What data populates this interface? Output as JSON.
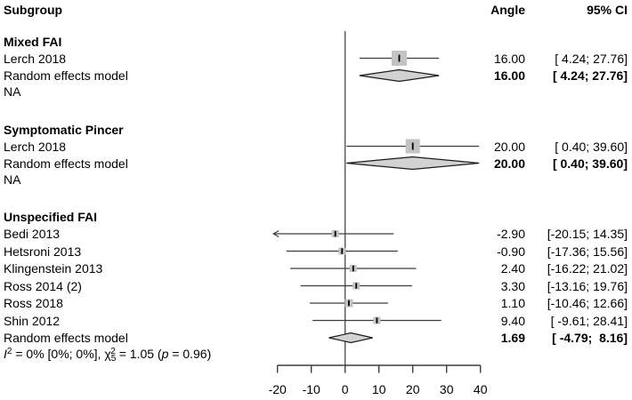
{
  "header": {
    "subgroup": "Subgroup",
    "angle": "Angle",
    "ci": "95% CI"
  },
  "chart_data": {
    "type": "forest",
    "xlim": [
      -20,
      40
    ],
    "ticks": [
      "-20",
      "-10",
      "0",
      "10",
      "20",
      "30",
      "40"
    ],
    "tick_values": [
      -20,
      -10,
      0,
      10,
      20,
      30,
      40
    ],
    "zero_line": 0,
    "grid": false,
    "groups": [
      {
        "heading": "Mixed FAI",
        "studies": [
          {
            "label": "Lerch 2018",
            "estimate": 16.0,
            "lower": 4.24,
            "upper": 27.76,
            "angle_text": "16.00",
            "ci_text": "[ 4.24; 27.76]"
          }
        ],
        "summary": {
          "label": "Random effects model",
          "estimate": 16.0,
          "lower": 4.24,
          "upper": 27.76,
          "angle_text": "16.00",
          "ci_text": "[ 4.24; 27.76]"
        },
        "note": "NA"
      },
      {
        "heading": "Symptomatic Pincer",
        "studies": [
          {
            "label": "Lerch 2018",
            "estimate": 20.0,
            "lower": 0.4,
            "upper": 39.6,
            "angle_text": "20.00",
            "ci_text": "[ 0.40; 39.60]"
          }
        ],
        "summary": {
          "label": "Random effects model",
          "estimate": 20.0,
          "lower": 0.4,
          "upper": 39.6,
          "angle_text": "20.00",
          "ci_text": "[ 0.40; 39.60]"
        },
        "note": "NA"
      },
      {
        "heading": "Unspecified FAI",
        "studies": [
          {
            "label": "Bedi 2013",
            "estimate": -2.9,
            "lower": -20.15,
            "upper": 14.35,
            "angle_text": "-2.90",
            "ci_text": "[-20.15; 14.35]"
          },
          {
            "label": "Hetsroni 2013",
            "estimate": -0.9,
            "lower": -17.36,
            "upper": 15.56,
            "angle_text": "-0.90",
            "ci_text": "[-17.36; 15.56]"
          },
          {
            "label": "Klingenstein 2013",
            "estimate": 2.4,
            "lower": -16.22,
            "upper": 21.02,
            "angle_text": "2.40",
            "ci_text": "[-16.22; 21.02]"
          },
          {
            "label": "Ross 2014 (2)",
            "estimate": 3.3,
            "lower": -13.16,
            "upper": 19.76,
            "angle_text": "3.30",
            "ci_text": "[-13.16; 19.76]"
          },
          {
            "label": "Ross 2018",
            "estimate": 1.1,
            "lower": -10.46,
            "upper": 12.66,
            "angle_text": "1.10",
            "ci_text": "[-10.46; 12.66]"
          },
          {
            "label": "Shin 2012",
            "estimate": 9.4,
            "lower": -9.61,
            "upper": 28.41,
            "angle_text": "9.40",
            "ci_text": "[ -9.61; 28.41]"
          }
        ],
        "summary": {
          "label": "Random effects model",
          "estimate": 1.69,
          "lower": -4.79,
          "upper": 8.16,
          "angle_text": "1.69",
          "ci_text": "[ -4.79;  8.16]"
        }
      }
    ],
    "heterogeneity_text": "I² = 0% [0%; 0%], χ₅² = 1.05 (p = 0.96)",
    "heterogeneity_segments": [
      {
        "t": "I",
        "i": true
      },
      {
        "t": "2",
        "sup": true
      },
      {
        "t": " = 0% [0%; 0%], "
      },
      {
        "t": "χ"
      },
      {
        "t": "5",
        "sub": true
      },
      {
        "t": "2",
        "sup": true,
        "stack": true
      },
      {
        "t": " = 1.05 ("
      },
      {
        "t": "p",
        "i": true
      },
      {
        "t": " = 0.96)"
      }
    ]
  },
  "colors": {
    "square_fill": "#c3c3c3",
    "diamond_fill": "#d2d2d2",
    "diamond_stroke": "#1c1c1c",
    "ci_line": "#3d3d3d",
    "axis": "#3d3d3d",
    "zero_line": "#555555",
    "text": "#000000"
  }
}
